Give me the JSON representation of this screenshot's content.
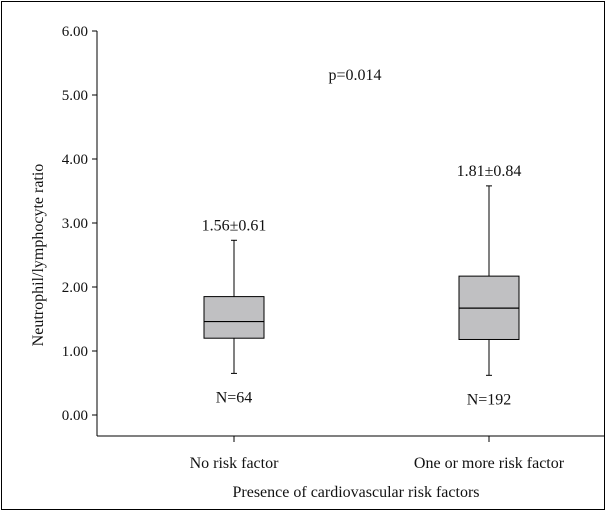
{
  "chart_data": {
    "type": "box",
    "title": "",
    "xlabel": "Presence of cardiovascular risk factors",
    "ylabel": "Neutrophil/lymphocyte ratio",
    "ylim": [
      0,
      6
    ],
    "yticks": [
      "0.00",
      "1.00",
      "2.00",
      "3.00",
      "4.00",
      "5.00",
      "6.00"
    ],
    "annotation": "p=0.014",
    "grid": false,
    "box_color": "#c0c0c2",
    "categories": [
      "No risk factor",
      "One or more risk factor"
    ],
    "boxes": [
      {
        "category": "No risk factor",
        "min": 0.65,
        "q1": 1.2,
        "median": 1.46,
        "q3": 1.85,
        "max": 2.73,
        "summary": "1.56±0.61",
        "n_label": "N=64"
      },
      {
        "category": "One or more risk factor",
        "min": 0.62,
        "q1": 1.18,
        "median": 1.67,
        "q3": 2.17,
        "max": 3.58,
        "summary": "1.81±0.84",
        "n_label": "N=192"
      }
    ]
  }
}
